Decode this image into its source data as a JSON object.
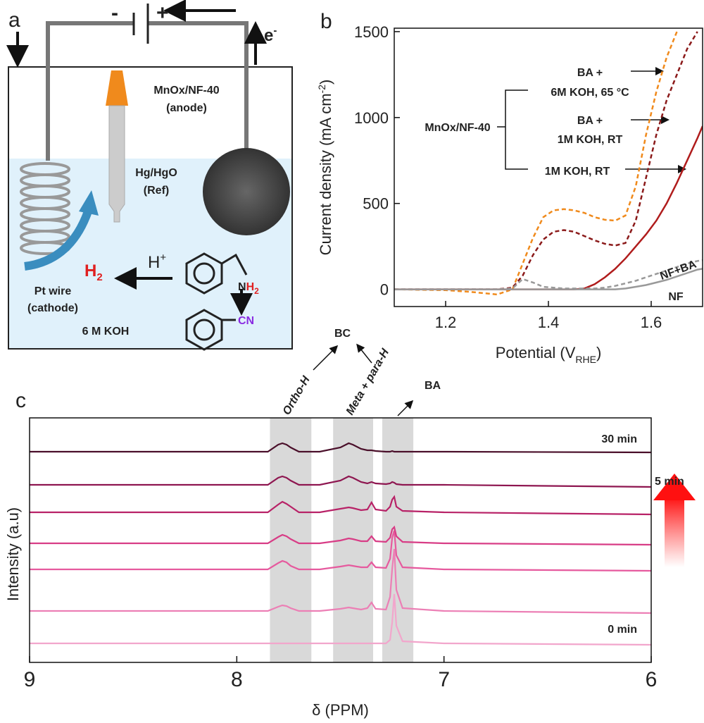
{
  "panel_a": {
    "label": "a",
    "minus": "-",
    "plus": "+",
    "electron": "e",
    "electron_sup": "-",
    "anode": [
      "MnOx/NF-40",
      "(anode)"
    ],
    "reference": [
      "Hg/HgO",
      "(Ref)"
    ],
    "cathode": [
      "Pt wire",
      "(cathode)"
    ],
    "hydrogen": "H",
    "hydrogen_sub": "2",
    "proton": "H",
    "proton_sup": "+",
    "amine_n": "N",
    "amine_h": "H",
    "amine_sub": "2",
    "nitrile": "CN",
    "electrolyte": "6 M KOH"
  },
  "chart_data": [
    {
      "type": "line",
      "label": "b",
      "xlabel": {
        "text": "Potential (V",
        "sub": "RHE",
        "end": ")"
      },
      "ylabel": {
        "text": "Current density (mA cm",
        "sup": "-2",
        "end": ")"
      },
      "xlim": [
        1.1,
        1.7
      ],
      "ylim": [
        -100,
        1520
      ],
      "xticks": [
        1.2,
        1.4,
        1.6
      ],
      "yticks": [
        0,
        500,
        1000,
        1500
      ],
      "group_label": "MnOx/NF-40",
      "x": [
        1.1,
        1.2,
        1.25,
        1.3,
        1.33,
        1.35,
        1.37,
        1.39,
        1.41,
        1.43,
        1.45,
        1.47,
        1.49,
        1.51,
        1.53,
        1.55,
        1.57,
        1.59,
        1.61,
        1.63,
        1.65,
        1.67,
        1.69,
        1.7
      ],
      "series": [
        {
          "label": [
            "BA +",
            "6M KOH, 65 °C"
          ],
          "color": "#f08a1c",
          "dash": true,
          "values": [
            0,
            -5,
            -15,
            -30,
            0,
            150,
            300,
            420,
            460,
            467,
            460,
            445,
            420,
            405,
            400,
            430,
            600,
            900,
            1150,
            1350,
            1500,
            null,
            null,
            null
          ]
        },
        {
          "label": [
            "BA +",
            "1M KOH, RT"
          ],
          "color": "#8b1a1a",
          "dash": true,
          "values": [
            0,
            0,
            0,
            0,
            10,
            80,
            200,
            290,
            335,
            345,
            335,
            310,
            285,
            265,
            255,
            270,
            400,
            650,
            900,
            1100,
            1250,
            1400,
            1500,
            null
          ]
        },
        {
          "label": [
            "1M KOH, RT"
          ],
          "color": "#b01c1c",
          "dash": false,
          "values": [
            0,
            0,
            0,
            0,
            0,
            0,
            0,
            0,
            0,
            0,
            0,
            5,
            30,
            70,
            120,
            180,
            250,
            320,
            400,
            500,
            620,
            750,
            880,
            950
          ]
        },
        {
          "label": [
            "NF+BA"
          ],
          "color": "#999999",
          "dash": true,
          "values": [
            0,
            0,
            0,
            0,
            5,
            60,
            40,
            15,
            10,
            5,
            5,
            5,
            5,
            10,
            20,
            35,
            50,
            70,
            90,
            110,
            130,
            150,
            165,
            170
          ]
        },
        {
          "label": [
            "NF"
          ],
          "color": "#999999",
          "dash": false,
          "values": [
            0,
            0,
            0,
            0,
            0,
            0,
            0,
            0,
            0,
            0,
            0,
            0,
            0,
            0,
            0,
            5,
            15,
            25,
            40,
            55,
            75,
            95,
            115,
            120
          ]
        }
      ]
    },
    {
      "type": "line",
      "label": "c",
      "xlabel": "δ (PPM)",
      "ylabel": "Intensity (a.u)",
      "xlim": [
        9,
        6
      ],
      "xticks": [
        9,
        8,
        7,
        6
      ],
      "x": [
        9,
        7.85,
        7.8,
        7.78,
        7.76,
        7.74,
        7.7,
        7.6,
        7.5,
        7.46,
        7.44,
        7.4,
        7.37,
        7.35,
        7.33,
        7.28,
        7.26,
        7.25,
        7.24,
        7.23,
        7.2,
        7.0,
        6
      ],
      "series": [
        {
          "color": "#f2a6cc",
          "values": [
            0,
            0,
            0,
            0,
            0,
            0,
            0,
            0,
            0,
            0,
            0,
            0,
            0,
            0,
            0,
            0,
            5,
            30,
            70,
            25,
            3,
            0,
            -2
          ]
        },
        {
          "color": "#ec7fb5",
          "values": [
            0,
            0,
            6,
            8,
            7,
            4,
            0,
            0,
            3,
            5,
            4,
            2,
            4,
            12,
            3,
            2,
            20,
            60,
            88,
            30,
            4,
            0,
            -3
          ]
        },
        {
          "color": "#e65a9e",
          "values": [
            0,
            0,
            9,
            12,
            10,
            5,
            0,
            0,
            4,
            6,
            5,
            3,
            3,
            10,
            3,
            2,
            15,
            45,
            55,
            20,
            3,
            0,
            -2
          ]
        },
        {
          "color": "#d83d86",
          "values": [
            0,
            0,
            9,
            12,
            10,
            6,
            0,
            0,
            4,
            7,
            6,
            3,
            3,
            10,
            3,
            2,
            8,
            20,
            23,
            10,
            2,
            0,
            -2
          ]
        },
        {
          "color": "#b82267",
          "values": [
            0,
            0,
            11,
            15,
            12,
            8,
            0,
            0,
            5,
            7,
            6,
            3,
            4,
            14,
            4,
            2,
            8,
            18,
            22,
            8,
            2,
            0,
            -3
          ]
        },
        {
          "color": "#8e1650",
          "values": [
            0,
            0,
            10,
            12,
            10,
            6,
            0,
            0,
            6,
            12,
            10,
            4,
            2,
            4,
            2,
            1,
            2,
            4,
            3,
            1,
            0,
            0,
            -3
          ]
        },
        {
          "color": "#4a0f2a",
          "values": [
            0,
            0,
            10,
            12,
            10,
            6,
            0,
            0,
            6,
            12,
            10,
            4,
            2,
            2,
            1,
            0,
            0,
            1,
            0,
            0,
            0,
            0,
            -1
          ]
        }
      ],
      "regions": [
        {
          "label": "Ortho-H",
          "from": 7.84,
          "to": 7.64
        },
        {
          "label": "Meta + para-H",
          "from": 7.535,
          "to": 7.342
        },
        {
          "label": "BA",
          "from": 7.298,
          "to": 7.148
        }
      ],
      "product_label": "BC",
      "time_labels": {
        "end": "30 min",
        "step": "5 min",
        "start": "0 min"
      }
    }
  ]
}
